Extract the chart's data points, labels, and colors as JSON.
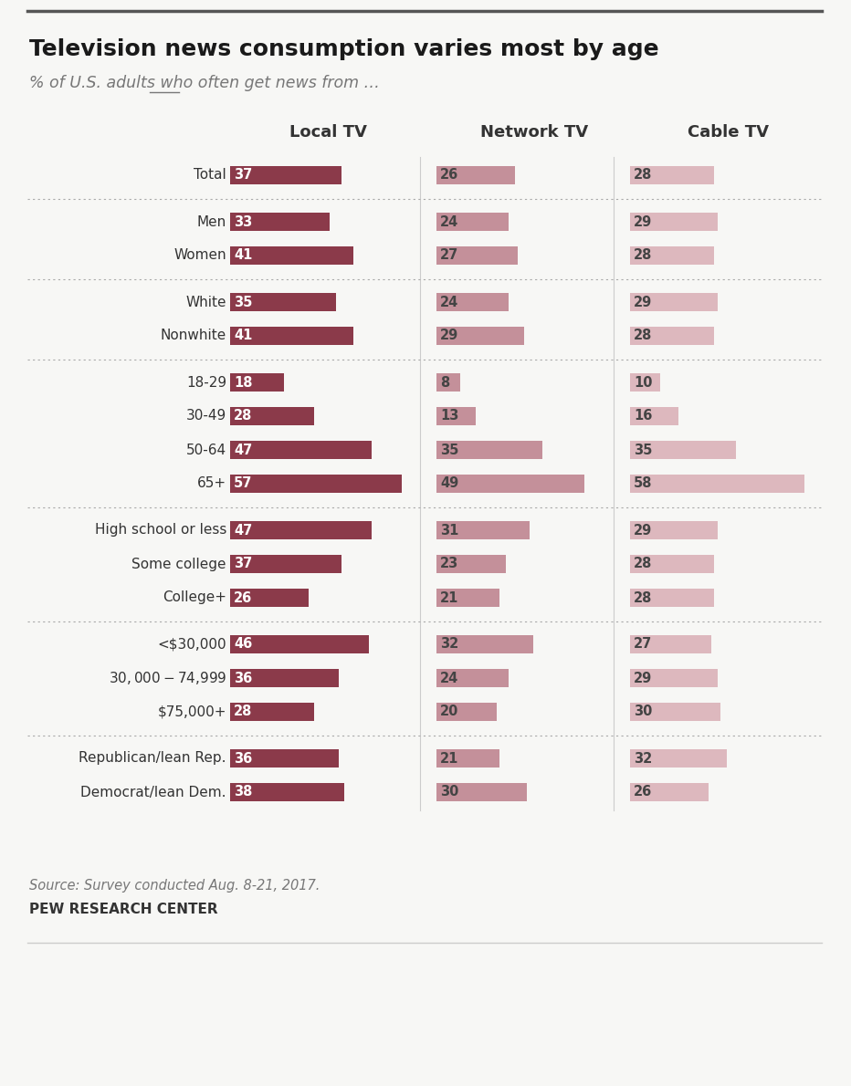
{
  "title": "Television news consumption varies most by age",
  "subtitle": "% of U.S. adults who often get news from …",
  "col_headers": [
    "Local TV",
    "Network TV",
    "Cable TV"
  ],
  "rows": [
    {
      "label": "Total",
      "local": 37,
      "network": 26,
      "cable": 28,
      "group_end": true
    },
    {
      "label": "Men",
      "local": 33,
      "network": 24,
      "cable": 29,
      "group_end": false
    },
    {
      "label": "Women",
      "local": 41,
      "network": 27,
      "cable": 28,
      "group_end": true
    },
    {
      "label": "White",
      "local": 35,
      "network": 24,
      "cable": 29,
      "group_end": false
    },
    {
      "label": "Nonwhite",
      "local": 41,
      "network": 29,
      "cable": 28,
      "group_end": true
    },
    {
      "label": "18-29",
      "local": 18,
      "network": 8,
      "cable": 10,
      "group_end": false
    },
    {
      "label": "30-49",
      "local": 28,
      "network": 13,
      "cable": 16,
      "group_end": false
    },
    {
      "label": "50-64",
      "local": 47,
      "network": 35,
      "cable": 35,
      "group_end": false
    },
    {
      "label": "65+",
      "local": 57,
      "network": 49,
      "cable": 58,
      "group_end": true
    },
    {
      "label": "High school or less",
      "local": 47,
      "network": 31,
      "cable": 29,
      "group_end": false
    },
    {
      "label": "Some college",
      "local": 37,
      "network": 23,
      "cable": 28,
      "group_end": false
    },
    {
      "label": "College+",
      "local": 26,
      "network": 21,
      "cable": 28,
      "group_end": true
    },
    {
      "label": "<$30,000",
      "local": 46,
      "network": 32,
      "cable": 27,
      "group_end": false
    },
    {
      "label": "$30,000-$74,999",
      "local": 36,
      "network": 24,
      "cable": 29,
      "group_end": false
    },
    {
      "label": "$75,000+",
      "local": 28,
      "network": 20,
      "cable": 30,
      "group_end": true
    },
    {
      "label": "Republican/lean Rep.",
      "local": 36,
      "network": 21,
      "cable": 32,
      "group_end": false
    },
    {
      "label": "Democrat/lean Dem.",
      "local": 38,
      "network": 30,
      "cable": 26,
      "group_end": false
    }
  ],
  "color_local": "#8B3A4A",
  "color_network": "#C4909A",
  "color_cable": "#DDB8BE",
  "bg_color": "#f7f7f5",
  "source_text": "Source: Survey conducted Aug. 8-21, 2017.",
  "credit_text": "PEW RESEARCH CENTER"
}
